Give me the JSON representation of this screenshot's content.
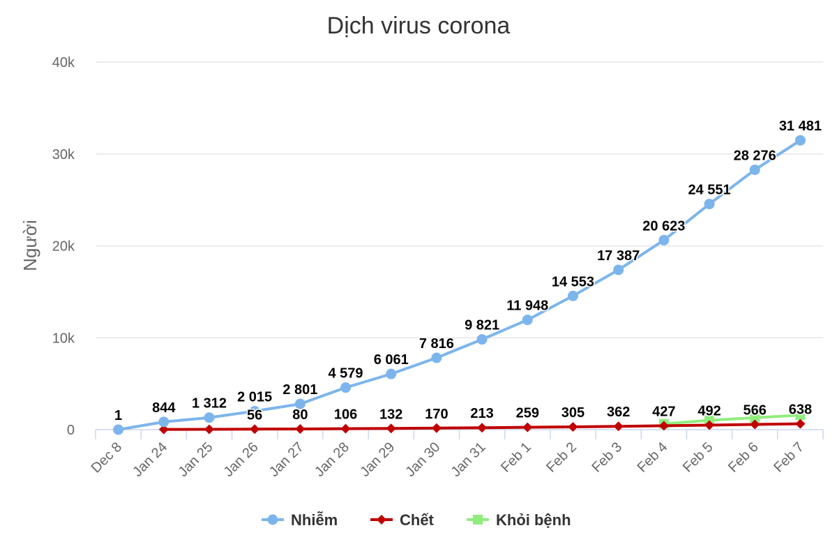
{
  "chart_data": {
    "type": "line",
    "title": "Dịch virus corona",
    "xlabel": "",
    "ylabel": "Người",
    "categories": [
      "Dec 8",
      "Jan 24",
      "Jan 25",
      "Jan 26",
      "Jan 27",
      "Jan 28",
      "Jan 29",
      "Jan 30",
      "Jan 31",
      "Feb 1",
      "Feb 2",
      "Feb 3",
      "Feb 4",
      "Feb 5",
      "Feb 6",
      "Feb 7"
    ],
    "ylim": [
      0,
      40000
    ],
    "yticks": [
      0,
      10000,
      20000,
      30000,
      40000
    ],
    "ytick_labels": [
      "0",
      "10k",
      "20k",
      "30k",
      "40k"
    ],
    "grid": true,
    "legend_position": "bottom-center",
    "series": [
      {
        "name": "Nhiễm",
        "color": "#7cb5ec",
        "marker": "circle",
        "values": [
          1,
          844,
          1312,
          2015,
          2801,
          4579,
          6061,
          7816,
          9821,
          11948,
          14553,
          17387,
          20623,
          24551,
          28276,
          31481
        ],
        "labels": [
          "1",
          "844",
          "1 312",
          "2 015",
          "2 801",
          "4 579",
          "6 061",
          "7 816",
          "9 821",
          "11 948",
          "14 553",
          "17 387",
          "20 623",
          "24 551",
          "28 276",
          "31 481"
        ]
      },
      {
        "name": "Chết",
        "color": "#c00000",
        "marker": "diamond",
        "values": [
          null,
          25,
          41,
          56,
          80,
          106,
          132,
          170,
          213,
          259,
          305,
          362,
          427,
          492,
          566,
          638
        ],
        "labels": [
          null,
          null,
          null,
          "56",
          "80",
          "106",
          "132",
          "170",
          "213",
          "259",
          "305",
          "362",
          "427",
          "492",
          "566",
          "638"
        ]
      },
      {
        "name": "Khỏi bệnh",
        "color": "#90ed7d",
        "marker": "square",
        "values": [
          null,
          null,
          null,
          null,
          null,
          null,
          null,
          null,
          null,
          null,
          null,
          null,
          632,
          1020,
          1300,
          1580
        ],
        "labels": []
      }
    ]
  }
}
